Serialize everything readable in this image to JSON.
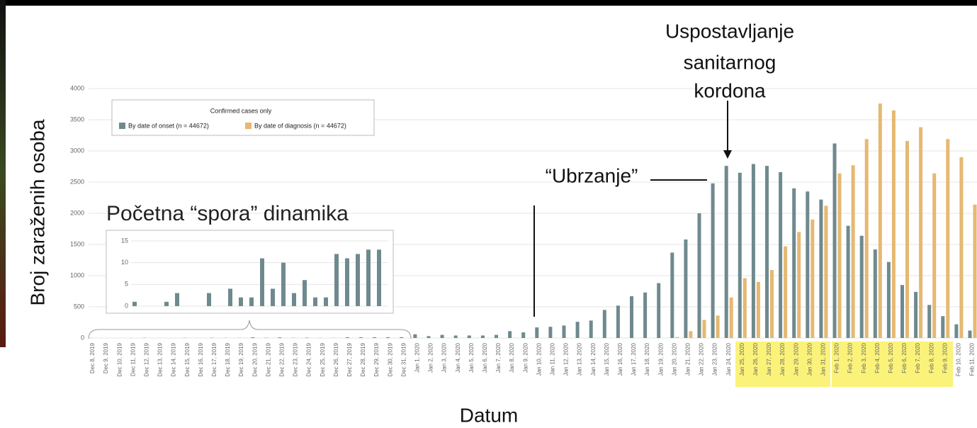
{
  "chart_data": [
    {
      "type": "bar",
      "y_label": "Broj zaraženih osoba",
      "x_label": "Datum",
      "legend_title": "Confirmed cases only",
      "annotation_cordon": [
        "Uspostavljanje",
        "sanitarnog",
        "kordona"
      ],
      "annotation_acceleration": "“Ubrzanje”",
      "categories": [
        "Dec 8, 2019",
        "Dec 9, 2019",
        "Dec 10, 2019",
        "Dec 11, 2019",
        "Dec 12, 2019",
        "Dec 13, 2019",
        "Dec 14, 2019",
        "Dec 15, 2019",
        "Dec 16, 2019",
        "Dec 17, 2019",
        "Dec 18, 2019",
        "Dec 19, 2019",
        "Dec 20, 2019",
        "Dec 21, 2019",
        "Dec 22, 2019",
        "Dec 23, 2019",
        "Dec 24, 2019",
        "Dec 25, 2019",
        "Dec 26, 2019",
        "Dec 27, 2019",
        "Dec 28, 2019",
        "Dec 29, 2019",
        "Dec 30, 2019",
        "Dec 31, 2019",
        "Jan 1, 2020",
        "Jan 2, 2020",
        "Jan 3, 2020",
        "Jan 4, 2020",
        "Jan 5, 2020",
        "Jan 6, 2020",
        "Jan 7, 2020",
        "Jan 8, 2020",
        "Jan 9, 2020",
        "Jan 10, 2020",
        "Jan 11, 2020",
        "Jan 12, 2020",
        "Jan 13, 2020",
        "Jan 14, 2020",
        "Jan 15, 2020",
        "Jan 16, 2020",
        "Jan 17, 2020",
        "Jan 18, 2020",
        "Jan 19, 2020",
        "Jan 20, 2020",
        "Jan 21, 2020",
        "Jan 22, 2020",
        "Jan 23, 2020",
        "Jan 24, 2020",
        "Jan 25, 2020",
        "Jan 26, 2020",
        "Jan 27, 2020",
        "Jan 28, 2020",
        "Jan 29, 2020",
        "Jan 30, 2020",
        "Jan 31, 2020",
        "Feb 1, 2020",
        "Feb 2, 2020",
        "Feb 3, 2020",
        "Feb 4, 2020",
        "Feb 5, 2020",
        "Feb 6, 2020",
        "Feb 7, 2020",
        "Feb 8, 2020",
        "Feb 9, 2020",
        "Feb 10, 2020",
        "Feb 11, 2020"
      ],
      "series": [
        {
          "name": "By date of onset (n = 44672)",
          "color": "#6f8a8e",
          "values": [
            1,
            0,
            0,
            1,
            3,
            0,
            0,
            3,
            0,
            4,
            2,
            2,
            11,
            4,
            10,
            3,
            6,
            2,
            2,
            12,
            11,
            12,
            13,
            13,
            60,
            30,
            50,
            40,
            40,
            40,
            50,
            110,
            90,
            170,
            180,
            200,
            260,
            280,
            450,
            520,
            670,
            730,
            880,
            1370,
            1580,
            2000,
            2480,
            2760,
            2650,
            2790,
            2760,
            2660,
            2400,
            2350,
            2220,
            3120,
            1800,
            1640,
            1420,
            1220,
            850,
            740,
            530,
            350,
            220,
            120
          ]
        },
        {
          "name": "By date of diagnosis (n = 44672)",
          "color": "#e6b872",
          "values": [
            null,
            null,
            null,
            null,
            null,
            null,
            null,
            null,
            null,
            null,
            null,
            null,
            null,
            null,
            null,
            null,
            null,
            null,
            null,
            null,
            null,
            null,
            null,
            null,
            null,
            null,
            null,
            null,
            null,
            null,
            null,
            null,
            null,
            null,
            null,
            null,
            null,
            null,
            null,
            null,
            null,
            null,
            null,
            15,
            110,
            290,
            360,
            650,
            960,
            900,
            1090,
            1470,
            1700,
            1900,
            2120,
            2640,
            2770,
            3190,
            3760,
            3650,
            3160,
            3380,
            2640,
            3190,
            2900,
            2140
          ]
        }
      ],
      "ylim": [
        0,
        4000
      ],
      "yticks": [
        0,
        500,
        1000,
        1500,
        2000,
        2500,
        3000,
        3500,
        4000
      ],
      "grid": true
    },
    {
      "type": "bar",
      "title": "Početna “spora” dinamika",
      "color": "#6f8a8e",
      "values": [
        1,
        0,
        0,
        1,
        3,
        0,
        0,
        3,
        0,
        4,
        2,
        2,
        11,
        4,
        10,
        3,
        6,
        2,
        2,
        12,
        11,
        12,
        13,
        13
      ],
      "ylim": [
        0,
        15
      ],
      "yticks": [
        0,
        5,
        10,
        15
      ]
    }
  ]
}
